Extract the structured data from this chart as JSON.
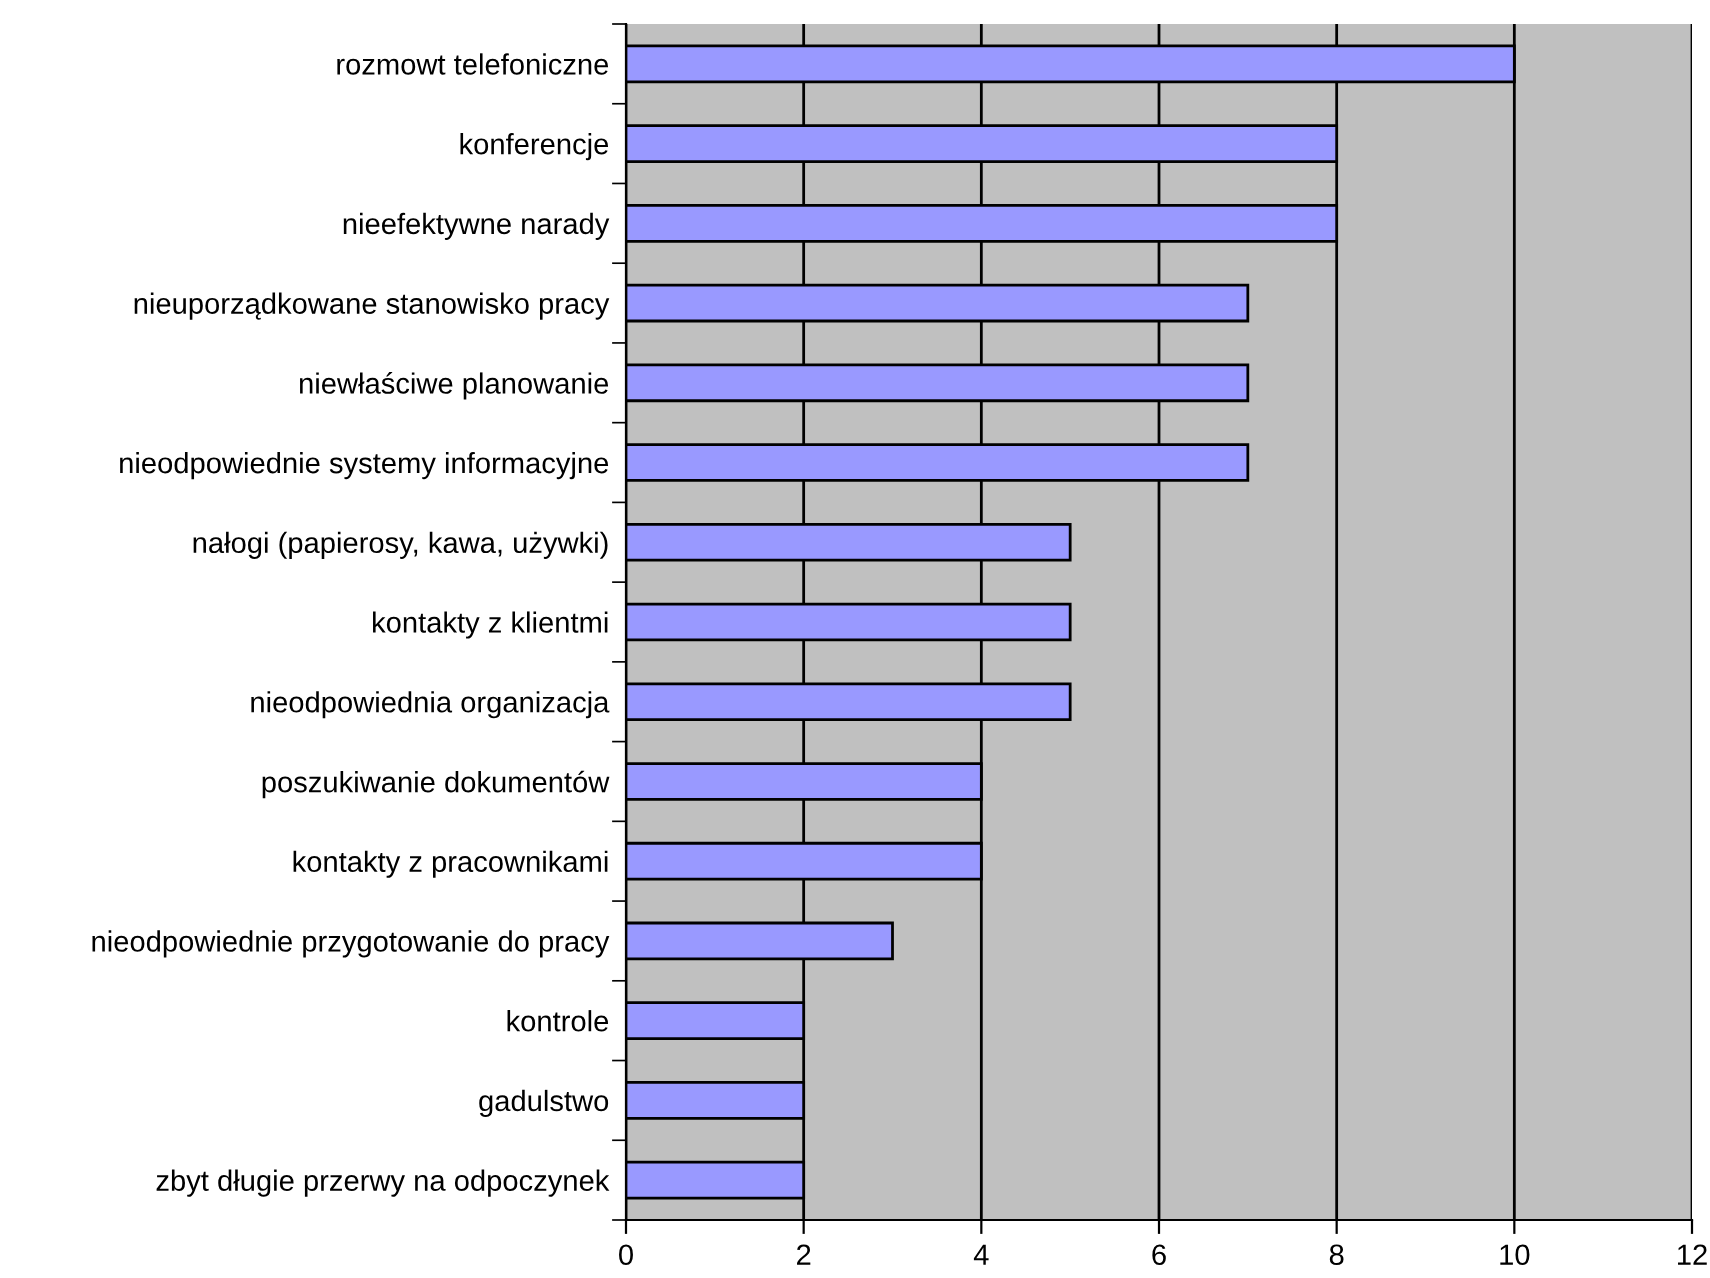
{
  "chart_data": {
    "type": "bar",
    "orientation": "horizontal",
    "categories": [
      "rozmowt telefoniczne",
      "konferencje",
      "nieefektywne narady",
      "nieuporządkowane stanowisko pracy",
      "niewłaściwe planowanie",
      "nieodpowiednie systemy informacyjne",
      "nałogi (papierosy, kawa, używki)",
      "kontakty z klientmi",
      "nieodpowiednia organizacja",
      "poszukiwanie dokumentów",
      "kontakty z pracownikami",
      "nieodpowiednie przygotowanie do pracy",
      "kontrole",
      "gadulstwo",
      "zbyt długie przerwy na odpoczynek"
    ],
    "values": [
      10,
      8,
      8,
      7,
      7,
      7,
      5,
      5,
      5,
      4,
      4,
      3,
      2,
      2,
      2
    ],
    "color": "#9999ff",
    "xlim": [
      0,
      12
    ],
    "xticks": [
      0,
      2,
      4,
      6,
      8,
      10,
      12
    ],
    "grid": "x",
    "legend": false
  }
}
